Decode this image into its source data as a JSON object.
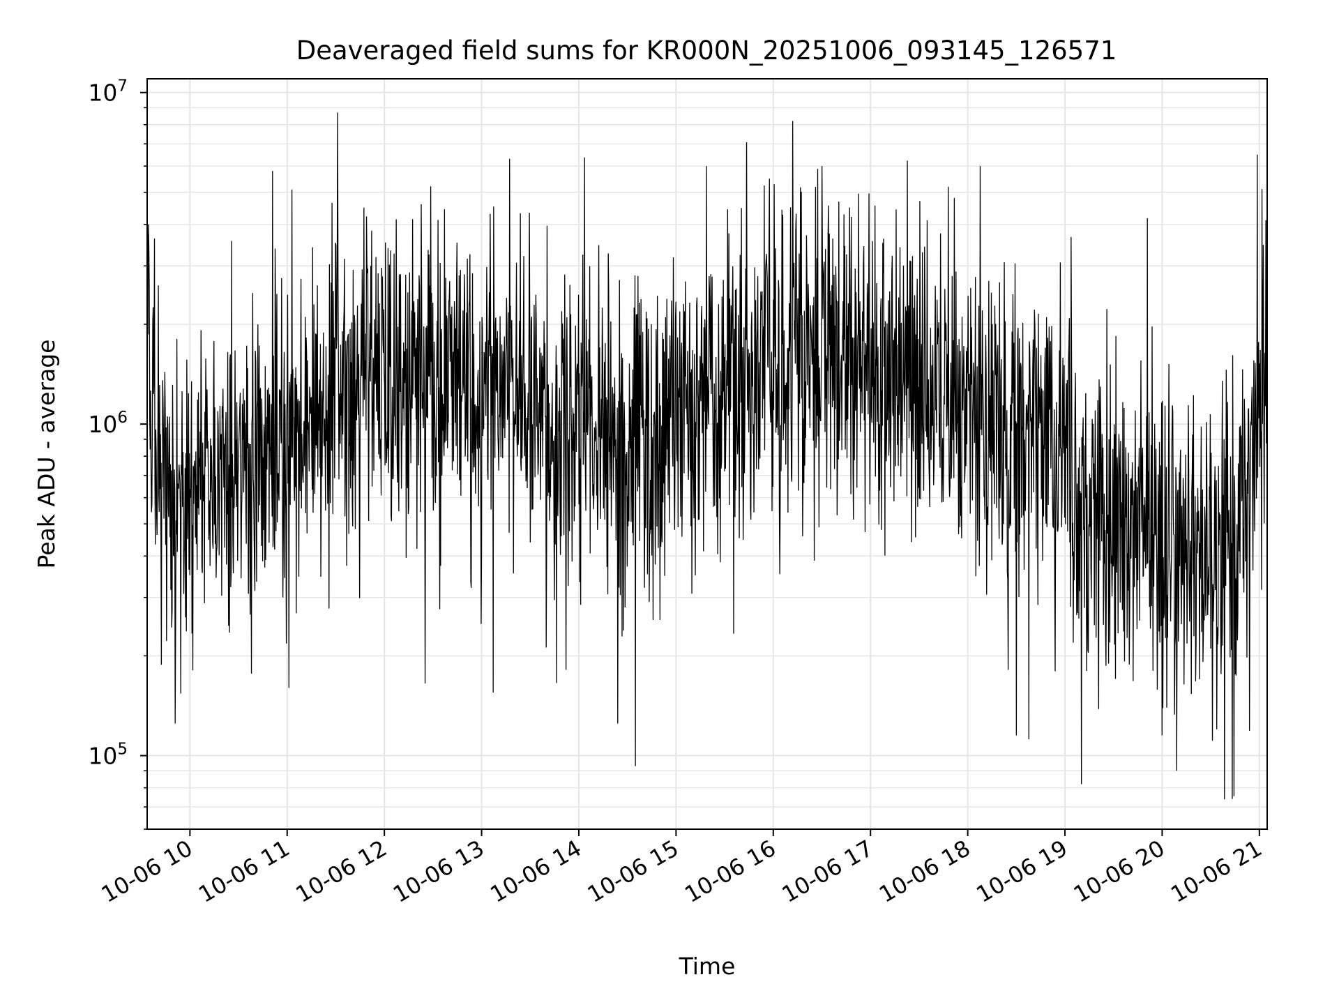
{
  "chart_data": {
    "type": "line",
    "title": "Deaveraged field sums for KR000N_20251006_093145_126571",
    "xlabel": "Time",
    "ylabel": "Peak ADU - average",
    "yscale": "log",
    "ylim": [
      60000,
      11000000
    ],
    "xlim_hours": [
      9.56,
      21.08
    ],
    "grid": true,
    "line_color": "#000000",
    "grid_color": "#e6e6e6",
    "x_ticks": [
      {
        "hour": 10,
        "label": "10-06 10"
      },
      {
        "hour": 11,
        "label": "10-06 11"
      },
      {
        "hour": 12,
        "label": "10-06 12"
      },
      {
        "hour": 13,
        "label": "10-06 13"
      },
      {
        "hour": 14,
        "label": "10-06 14"
      },
      {
        "hour": 15,
        "label": "10-06 15"
      },
      {
        "hour": 16,
        "label": "10-06 16"
      },
      {
        "hour": 17,
        "label": "10-06 17"
      },
      {
        "hour": 18,
        "label": "10-06 18"
      },
      {
        "hour": 19,
        "label": "10-06 19"
      },
      {
        "hour": 20,
        "label": "10-06 20"
      },
      {
        "hour": 21,
        "label": "10-06 21"
      }
    ],
    "y_ticks": [
      {
        "value": 100000,
        "base": "10",
        "exp": "5"
      },
      {
        "value": 1000000,
        "base": "10",
        "exp": "6"
      },
      {
        "value": 10000000,
        "base": "10",
        "exp": "7"
      }
    ],
    "envelope": {
      "description_hours": [
        9.56,
        9.7,
        10.0,
        10.5,
        11.0,
        11.5,
        12.0,
        12.5,
        13.0,
        13.5,
        14.0,
        14.5,
        15.0,
        15.5,
        16.0,
        16.5,
        17.0,
        17.5,
        18.0,
        18.5,
        19.0,
        19.5,
        20.0,
        20.5,
        20.8,
        21.0,
        21.08
      ],
      "median_adu": [
        1400000,
        700000,
        650000,
        750000,
        850000,
        1250000,
        1400000,
        1350000,
        1200000,
        1100000,
        950000,
        800000,
        1100000,
        1300000,
        1500000,
        1700000,
        1450000,
        1350000,
        1200000,
        1000000,
        750000,
        500000,
        420000,
        400000,
        450000,
        1100000,
        1500000
      ],
      "spread_decades": 0.45,
      "samples": 2600,
      "seed": 126571
    },
    "spikes": [
      {
        "hour": 11.52,
        "value": 8700000
      },
      {
        "hour": 10.85,
        "value": 5800000
      },
      {
        "hour": 11.05,
        "value": 5100000
      },
      {
        "hour": 15.96,
        "value": 5500000
      },
      {
        "hour": 16.5,
        "value": 6000000
      },
      {
        "hour": 17.8,
        "value": 5200000
      },
      {
        "hour": 18.13,
        "value": 6000000
      },
      {
        "hour": 20.98,
        "value": 6500000
      },
      {
        "hour": 14.58,
        "value": 93000
      },
      {
        "hour": 19.17,
        "value": 82000
      },
      {
        "hour": 20.15,
        "value": 90000
      },
      {
        "hour": 20.72,
        "value": 74000
      },
      {
        "hour": 9.85,
        "value": 125000
      },
      {
        "hour": 11.02,
        "value": 160000
      },
      {
        "hour": 12.42,
        "value": 165000
      },
      {
        "hour": 13.12,
        "value": 155000
      },
      {
        "hour": 14.4,
        "value": 125000
      },
      {
        "hour": 18.5,
        "value": 115000
      },
      {
        "hour": 18.63,
        "value": 112000
      }
    ]
  }
}
